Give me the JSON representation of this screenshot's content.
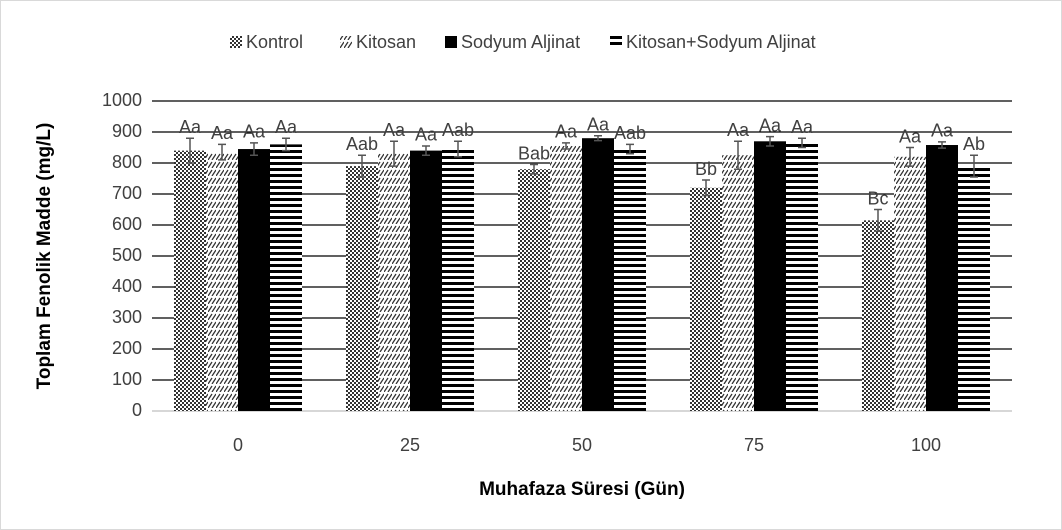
{
  "chart_data": {
    "type": "bar",
    "x_label": "Muhafaza Süresi (Gün)",
    "y_label": "Toplam Fenolik Madde (mg/L)",
    "categories": [
      "0",
      "25",
      "50",
      "75",
      "100"
    ],
    "series": [
      {
        "name": "Kontrol",
        "color": "#404040",
        "pattern": "checker",
        "values": [
          840,
          790,
          780,
          720,
          615
        ],
        "errors": [
          40,
          35,
          15,
          25,
          35
        ],
        "labels": [
          "Aa",
          "Aab",
          "Bab",
          "Bb",
          "Bc"
        ]
      },
      {
        "name": "Kitosan",
        "color": "#404040",
        "pattern": "diagonal",
        "values": [
          835,
          830,
          855,
          825,
          820
        ],
        "errors": [
          25,
          40,
          10,
          45,
          30
        ],
        "labels": [
          "Aa",
          "Aa",
          "Aa",
          "Aa",
          "Aa"
        ]
      },
      {
        "name": "Sodyum Aljinat",
        "color": "#000000",
        "pattern": "solid",
        "values": [
          845,
          840,
          880,
          870,
          858
        ],
        "errors": [
          20,
          15,
          8,
          15,
          10
        ],
        "labels": [
          "Aa",
          "Aa",
          "Aa",
          "Aa",
          "Aa"
        ]
      },
      {
        "name": "Kitosan+Sodyum Aljinat",
        "color": "#000000",
        "pattern": "horizontal",
        "values": [
          860,
          845,
          845,
          865,
          790
        ],
        "errors": [
          20,
          25,
          15,
          15,
          35
        ],
        "labels": [
          "Aa",
          "Aab",
          "Aab",
          "Aa",
          "Ab"
        ]
      }
    ],
    "ylim": [
      0,
      1000
    ],
    "yticks": [
      0,
      100,
      200,
      300,
      400,
      500,
      600,
      700,
      800,
      900,
      1000
    ],
    "grid": true,
    "legend": "top"
  }
}
